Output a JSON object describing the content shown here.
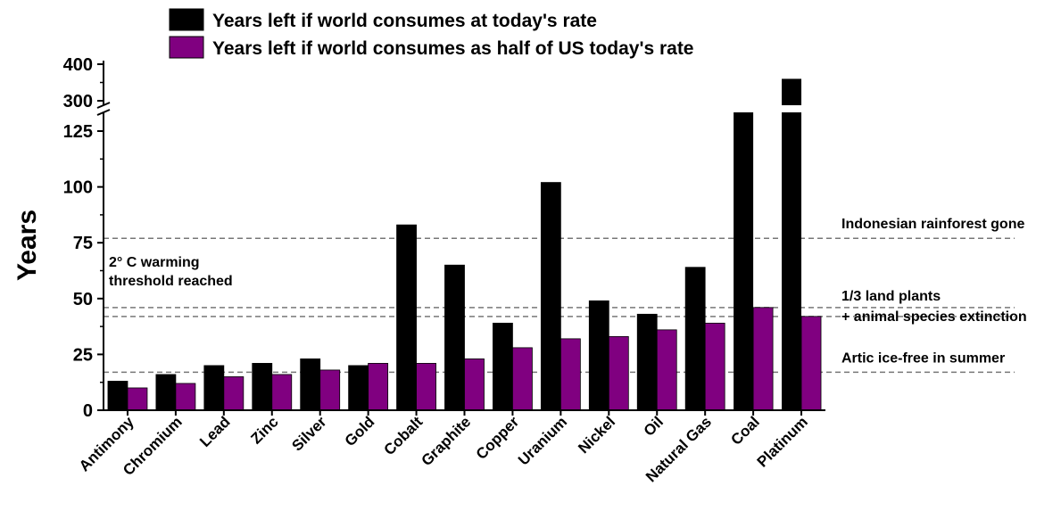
{
  "chart_data": {
    "type": "bar",
    "title": "",
    "xlabel": "",
    "ylabel": "Years",
    "broken_axis": true,
    "ylim_lower": [
      0,
      125
    ],
    "ylim_upper": [
      300,
      400
    ],
    "yticks_lower": [
      "0",
      "25",
      "50",
      "75",
      "100",
      "125"
    ],
    "yticks_upper": [
      "300",
      "400"
    ],
    "categories": [
      "Antimony",
      "Chromium",
      "Lead",
      "Zinc",
      "Silver",
      "Gold",
      "Cobalt",
      "Graphite",
      "Copper",
      "Uranium",
      "Nickel",
      "Oil",
      "Natural Gas",
      "Coal",
      "Platinum"
    ],
    "series": [
      {
        "name": "Years left if world consumes at today's rate",
        "color": "#000000",
        "values": [
          13,
          16,
          20,
          21,
          23,
          20,
          83,
          65,
          39,
          102,
          49,
          43,
          64,
          126,
          360
        ]
      },
      {
        "name": "Years left if world consumes as half of US today's rate",
        "color": "#800080",
        "values": [
          10,
          12,
          15,
          16,
          18,
          21,
          21,
          23,
          28,
          32,
          33,
          36,
          39,
          46,
          42
        ]
      }
    ],
    "reference_lines": [
      {
        "value": 77,
        "label_lines": [
          "Indonesian rainforest gone"
        ],
        "label_side": "right"
      },
      {
        "value": 46,
        "label_lines": [
          "2° C warming",
          "threshold reached"
        ],
        "label_side": "left"
      },
      {
        "value": 42,
        "label_lines": [
          "1/3 land plants",
          "+ animal species extinction"
        ],
        "label_side": "right"
      },
      {
        "value": 17,
        "label_lines": [
          "Artic ice-free in summer"
        ],
        "label_side": "right"
      }
    ],
    "legend_position": "top",
    "grid": false
  }
}
